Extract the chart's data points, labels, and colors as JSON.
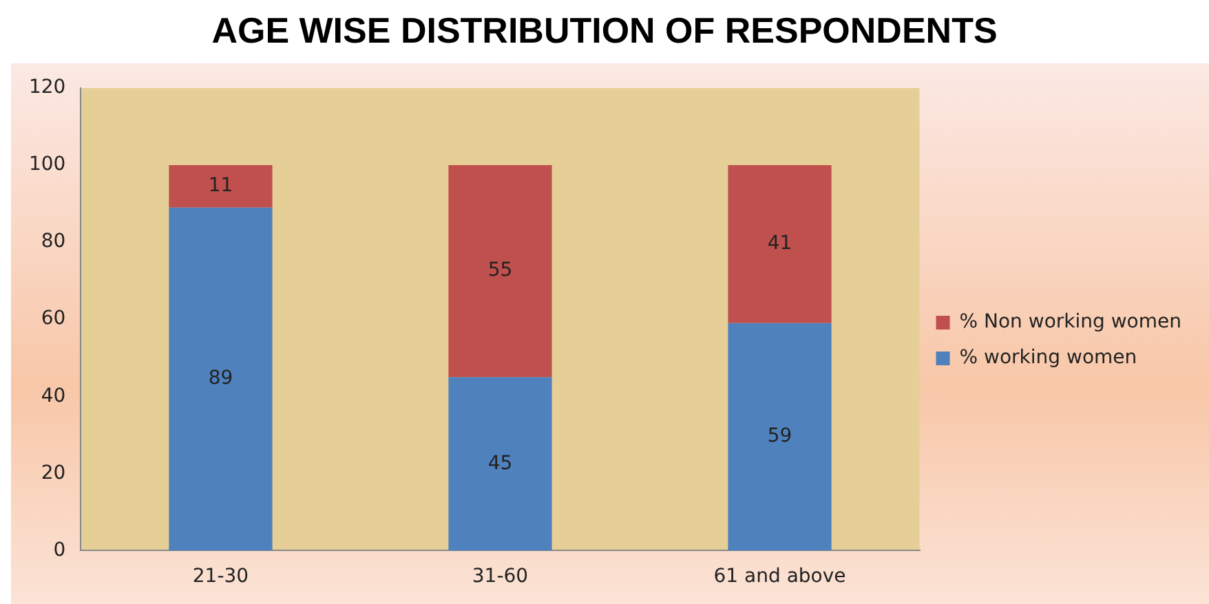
{
  "chart_data": {
    "type": "bar",
    "title": "AGE WISE DISTRIBUTION OF RESPONDENTS",
    "categories": [
      "21-30",
      "31-60",
      "61 and above"
    ],
    "stacked": true,
    "series": [
      {
        "name": "% working women",
        "color": "#4f81bd",
        "values": [
          89,
          45,
          59
        ]
      },
      {
        "name": "% Non working women",
        "color": "#c0504d",
        "values": [
          11,
          55,
          41
        ]
      }
    ],
    "ylim": [
      0,
      120
    ],
    "yticks": [
      0,
      20,
      40,
      60,
      80,
      100,
      120
    ],
    "grid": false,
    "legend": "right",
    "data_labels": true
  }
}
